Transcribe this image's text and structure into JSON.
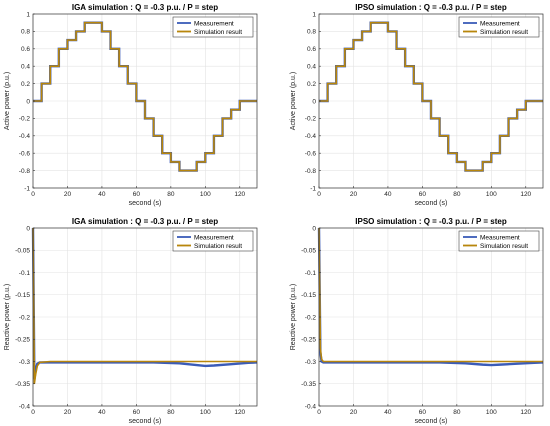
{
  "chart_data": [
    {
      "type": "line",
      "title": "IGA simulation : Q = -0.3 p.u. / P = step",
      "xlabel": "second (s)",
      "ylabel": "Active power (p.u.)",
      "xlim": [
        0,
        130
      ],
      "ylim": [
        -1,
        1
      ],
      "xticks": [
        0,
        20,
        40,
        60,
        80,
        100,
        120
      ],
      "yticks": [
        -1,
        -0.8,
        -0.6,
        -0.4,
        -0.2,
        0,
        0.2,
        0.4,
        0.6,
        0.8,
        1
      ],
      "legend_position": "top-right",
      "colors": {
        "measurement": "#3a5bb8",
        "simulation": "#b8860b"
      },
      "series": [
        {
          "name": "Measurement",
          "x": [
            0,
            5,
            5,
            10,
            10,
            15,
            15,
            20,
            20,
            25,
            25,
            30,
            30,
            35,
            35,
            40,
            40,
            45,
            45,
            50,
            50,
            55,
            55,
            60,
            60,
            65,
            65,
            70,
            70,
            75,
            75,
            80,
            80,
            85,
            85,
            90,
            90,
            95,
            95,
            100,
            100,
            105,
            105,
            110,
            110,
            115,
            115,
            120,
            120,
            125,
            125,
            130
          ],
          "y": [
            0,
            0,
            0.2,
            0.2,
            0.4,
            0.4,
            0.6,
            0.6,
            0.7,
            0.7,
            0.8,
            0.8,
            0.9,
            0.9,
            0.9,
            0.9,
            0.8,
            0.8,
            0.6,
            0.6,
            0.4,
            0.4,
            0.2,
            0.2,
            0,
            0,
            -0.2,
            -0.2,
            -0.4,
            -0.4,
            -0.6,
            -0.6,
            -0.7,
            -0.7,
            -0.8,
            -0.8,
            -0.8,
            -0.8,
            -0.7,
            -0.7,
            -0.6,
            -0.6,
            -0.4,
            -0.4,
            -0.2,
            -0.2,
            -0.1,
            -0.1,
            0,
            0,
            0,
            0
          ]
        },
        {
          "name": "Simulation result",
          "x": [
            0,
            5,
            5,
            10,
            10,
            15,
            15,
            20,
            20,
            25,
            25,
            30,
            30,
            35,
            35,
            40,
            40,
            45,
            45,
            50,
            50,
            55,
            55,
            60,
            60,
            65,
            65,
            70,
            70,
            75,
            75,
            80,
            80,
            85,
            85,
            90,
            90,
            95,
            95,
            100,
            100,
            105,
            105,
            110,
            110,
            115,
            115,
            120,
            120,
            125,
            125,
            130
          ],
          "y": [
            0,
            0,
            0.2,
            0.2,
            0.4,
            0.4,
            0.6,
            0.6,
            0.7,
            0.7,
            0.8,
            0.8,
            0.9,
            0.9,
            0.9,
            0.9,
            0.8,
            0.8,
            0.6,
            0.6,
            0.4,
            0.4,
            0.2,
            0.2,
            0,
            0,
            -0.2,
            -0.2,
            -0.4,
            -0.4,
            -0.6,
            -0.6,
            -0.7,
            -0.7,
            -0.8,
            -0.8,
            -0.8,
            -0.8,
            -0.7,
            -0.7,
            -0.6,
            -0.6,
            -0.4,
            -0.4,
            -0.2,
            -0.2,
            -0.1,
            -0.1,
            0,
            0,
            0,
            0
          ]
        }
      ]
    },
    {
      "type": "line",
      "title": "IPSO simulation : Q = -0.3 p.u. / P = step",
      "xlabel": "second (s)",
      "ylabel": "Active power (p.u.)",
      "xlim": [
        0,
        130
      ],
      "ylim": [
        -1,
        1
      ],
      "xticks": [
        0,
        20,
        40,
        60,
        80,
        100,
        120
      ],
      "yticks": [
        -1,
        -0.8,
        -0.6,
        -0.4,
        -0.2,
        0,
        0.2,
        0.4,
        0.6,
        0.8,
        1
      ],
      "legend_position": "top-right",
      "colors": {
        "measurement": "#3a5bb8",
        "simulation": "#b8860b"
      },
      "series": [
        {
          "name": "Measurement",
          "x": [
            0,
            5,
            5,
            10,
            10,
            15,
            15,
            20,
            20,
            25,
            25,
            30,
            30,
            35,
            35,
            40,
            40,
            45,
            45,
            50,
            50,
            55,
            55,
            60,
            60,
            65,
            65,
            70,
            70,
            75,
            75,
            80,
            80,
            85,
            85,
            90,
            90,
            95,
            95,
            100,
            100,
            105,
            105,
            110,
            110,
            115,
            115,
            120,
            120,
            125,
            125,
            130
          ],
          "y": [
            0,
            0,
            0.2,
            0.2,
            0.4,
            0.4,
            0.6,
            0.6,
            0.7,
            0.7,
            0.8,
            0.8,
            0.9,
            0.9,
            0.9,
            0.9,
            0.8,
            0.8,
            0.6,
            0.6,
            0.4,
            0.4,
            0.2,
            0.2,
            0,
            0,
            -0.2,
            -0.2,
            -0.4,
            -0.4,
            -0.6,
            -0.6,
            -0.7,
            -0.7,
            -0.8,
            -0.8,
            -0.8,
            -0.8,
            -0.7,
            -0.7,
            -0.6,
            -0.6,
            -0.4,
            -0.4,
            -0.2,
            -0.2,
            -0.1,
            -0.1,
            0,
            0,
            0,
            0
          ]
        },
        {
          "name": "Simulation result",
          "x": [
            0,
            5,
            5,
            10,
            10,
            15,
            15,
            20,
            20,
            25,
            25,
            30,
            30,
            35,
            35,
            40,
            40,
            45,
            45,
            50,
            50,
            55,
            55,
            60,
            60,
            65,
            65,
            70,
            70,
            75,
            75,
            80,
            80,
            85,
            85,
            90,
            90,
            95,
            95,
            100,
            100,
            105,
            105,
            110,
            110,
            115,
            115,
            120,
            120,
            125,
            125,
            130
          ],
          "y": [
            0,
            0,
            0.2,
            0.2,
            0.4,
            0.4,
            0.6,
            0.6,
            0.7,
            0.7,
            0.8,
            0.8,
            0.9,
            0.9,
            0.9,
            0.9,
            0.8,
            0.8,
            0.6,
            0.6,
            0.4,
            0.4,
            0.2,
            0.2,
            0,
            0,
            -0.2,
            -0.2,
            -0.4,
            -0.4,
            -0.6,
            -0.6,
            -0.7,
            -0.7,
            -0.8,
            -0.8,
            -0.8,
            -0.8,
            -0.7,
            -0.7,
            -0.6,
            -0.6,
            -0.4,
            -0.4,
            -0.2,
            -0.2,
            -0.1,
            -0.1,
            0,
            0,
            0,
            0
          ]
        }
      ]
    },
    {
      "type": "line",
      "title": "IGA simulation : Q = -0.3 p.u. / P = step",
      "xlabel": "second (s)",
      "ylabel": "Reactive power (p.u.)",
      "xlim": [
        0,
        130
      ],
      "ylim": [
        -0.4,
        0
      ],
      "xticks": [
        0,
        20,
        40,
        60,
        80,
        100,
        120
      ],
      "yticks": [
        -0.4,
        -0.35,
        -0.3,
        -0.25,
        -0.2,
        -0.15,
        -0.1,
        -0.05,
        0
      ],
      "legend_position": "top-right",
      "colors": {
        "measurement": "#3a5bb8",
        "simulation": "#b8860b"
      },
      "series": [
        {
          "name": "Measurement",
          "x": [
            0,
            0.8,
            1.5,
            2.5,
            4,
            10,
            40,
            70,
            85,
            95,
            100,
            105,
            115,
            125,
            130
          ],
          "y": [
            0,
            -0.34,
            -0.32,
            -0.305,
            -0.302,
            -0.302,
            -0.302,
            -0.302,
            -0.304,
            -0.308,
            -0.31,
            -0.309,
            -0.306,
            -0.303,
            -0.302
          ]
        },
        {
          "name": "Simulation result",
          "x": [
            0,
            0.8,
            1.5,
            2.5,
            4,
            10,
            40,
            70,
            100,
            130
          ],
          "y": [
            0,
            -0.35,
            -0.33,
            -0.31,
            -0.302,
            -0.3,
            -0.3,
            -0.3,
            -0.3,
            -0.3
          ]
        }
      ]
    },
    {
      "type": "line",
      "title": "IPSO simulation : Q = -0.3 p.u. / P = step",
      "xlabel": "second (s)",
      "ylabel": "Reactive power (p.u.)",
      "xlim": [
        0,
        130
      ],
      "ylim": [
        -0.4,
        0
      ],
      "xticks": [
        0,
        20,
        40,
        60,
        80,
        100,
        120
      ],
      "yticks": [
        -0.4,
        -0.35,
        -0.3,
        -0.25,
        -0.2,
        -0.15,
        -0.1,
        -0.05,
        0
      ],
      "legend_position": "top-right",
      "colors": {
        "measurement": "#3a5bb8",
        "simulation": "#b8860b"
      },
      "series": [
        {
          "name": "Measurement",
          "x": [
            0,
            0.8,
            1.5,
            2.5,
            4,
            10,
            40,
            70,
            85,
            95,
            100,
            105,
            115,
            125,
            130
          ],
          "y": [
            0,
            -0.28,
            -0.3,
            -0.302,
            -0.302,
            -0.302,
            -0.302,
            -0.302,
            -0.304,
            -0.307,
            -0.308,
            -0.307,
            -0.305,
            -0.303,
            -0.302
          ]
        },
        {
          "name": "Simulation result",
          "x": [
            0,
            0.8,
            1.5,
            2.5,
            4,
            10,
            40,
            70,
            100,
            130
          ],
          "y": [
            0,
            -0.27,
            -0.295,
            -0.3,
            -0.3,
            -0.3,
            -0.3,
            -0.3,
            -0.3,
            -0.3
          ]
        }
      ]
    }
  ]
}
